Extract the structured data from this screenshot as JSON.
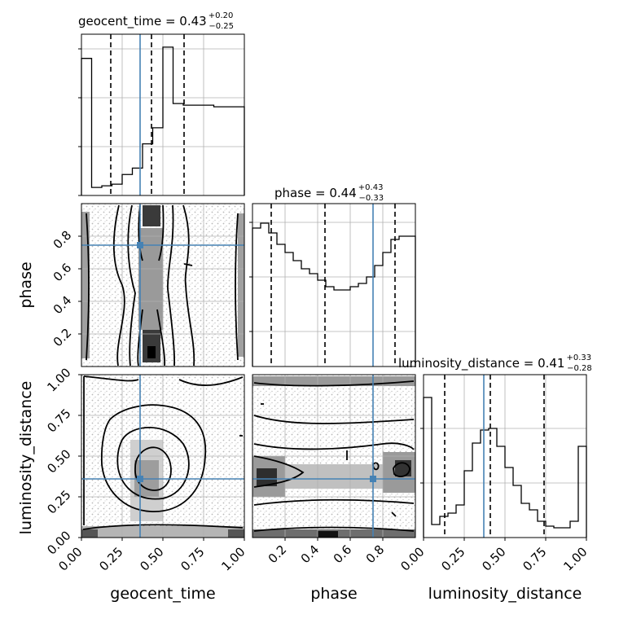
{
  "chart_data": {
    "type": "corner",
    "parameters": [
      "geocent_time",
      "phase",
      "luminosity_distance"
    ],
    "diagonal_titles": [
      {
        "name": "geocent_time",
        "median": "0.43",
        "plus": "+0.20",
        "minus": "−0.25"
      },
      {
        "name": "phase",
        "median": "0.44",
        "plus": "+0.43",
        "minus": "−0.33"
      },
      {
        "name": "luminosity_distance",
        "median": "0.41",
        "plus": "+0.33",
        "minus": "−0.28"
      }
    ],
    "truths": {
      "geocent_time": 0.35,
      "phase": 0.74,
      "luminosity_distance": 0.37
    },
    "quantiles": {
      "geocent_time": [
        0.18,
        0.43,
        0.63
      ],
      "phase": [
        0.11,
        0.44,
        0.87
      ],
      "luminosity_distance": [
        0.13,
        0.41,
        0.74
      ]
    },
    "ranges": {
      "geocent_time": [
        0.0,
        1.0
      ],
      "phase": [
        0.0,
        1.0
      ],
      "luminosity_distance": [
        0.0,
        1.0
      ]
    },
    "tick_labels": {
      "geocent_time": [
        "0.00",
        "0.25",
        "0.50",
        "0.75",
        "1.00"
      ],
      "phase": [
        "0.2",
        "0.4",
        "0.6",
        "0.8"
      ],
      "luminosity_distance": [
        "0.00",
        "0.25",
        "0.50",
        "0.75",
        "1.00"
      ]
    },
    "histograms": {
      "geocent_time": [
        0.85,
        0.05,
        0.06,
        0.07,
        0.13,
        0.17,
        0.32,
        0.42,
        0.92,
        0.57,
        0.56,
        0.56,
        0.56,
        0.55,
        0.55,
        0.55
      ],
      "phase": [
        0.85,
        0.88,
        0.82,
        0.75,
        0.7,
        0.65,
        0.6,
        0.57,
        0.53,
        0.49,
        0.47,
        0.47,
        0.49,
        0.51,
        0.55,
        0.62,
        0.7,
        0.78,
        0.8,
        0.8
      ],
      "luminosity_distance": [
        0.86,
        0.08,
        0.13,
        0.15,
        0.2,
        0.41,
        0.58,
        0.66,
        0.67,
        0.56,
        0.43,
        0.32,
        0.21,
        0.17,
        0.1,
        0.07,
        0.06,
        0.06,
        0.1,
        0.56
      ]
    },
    "grid": true
  }
}
